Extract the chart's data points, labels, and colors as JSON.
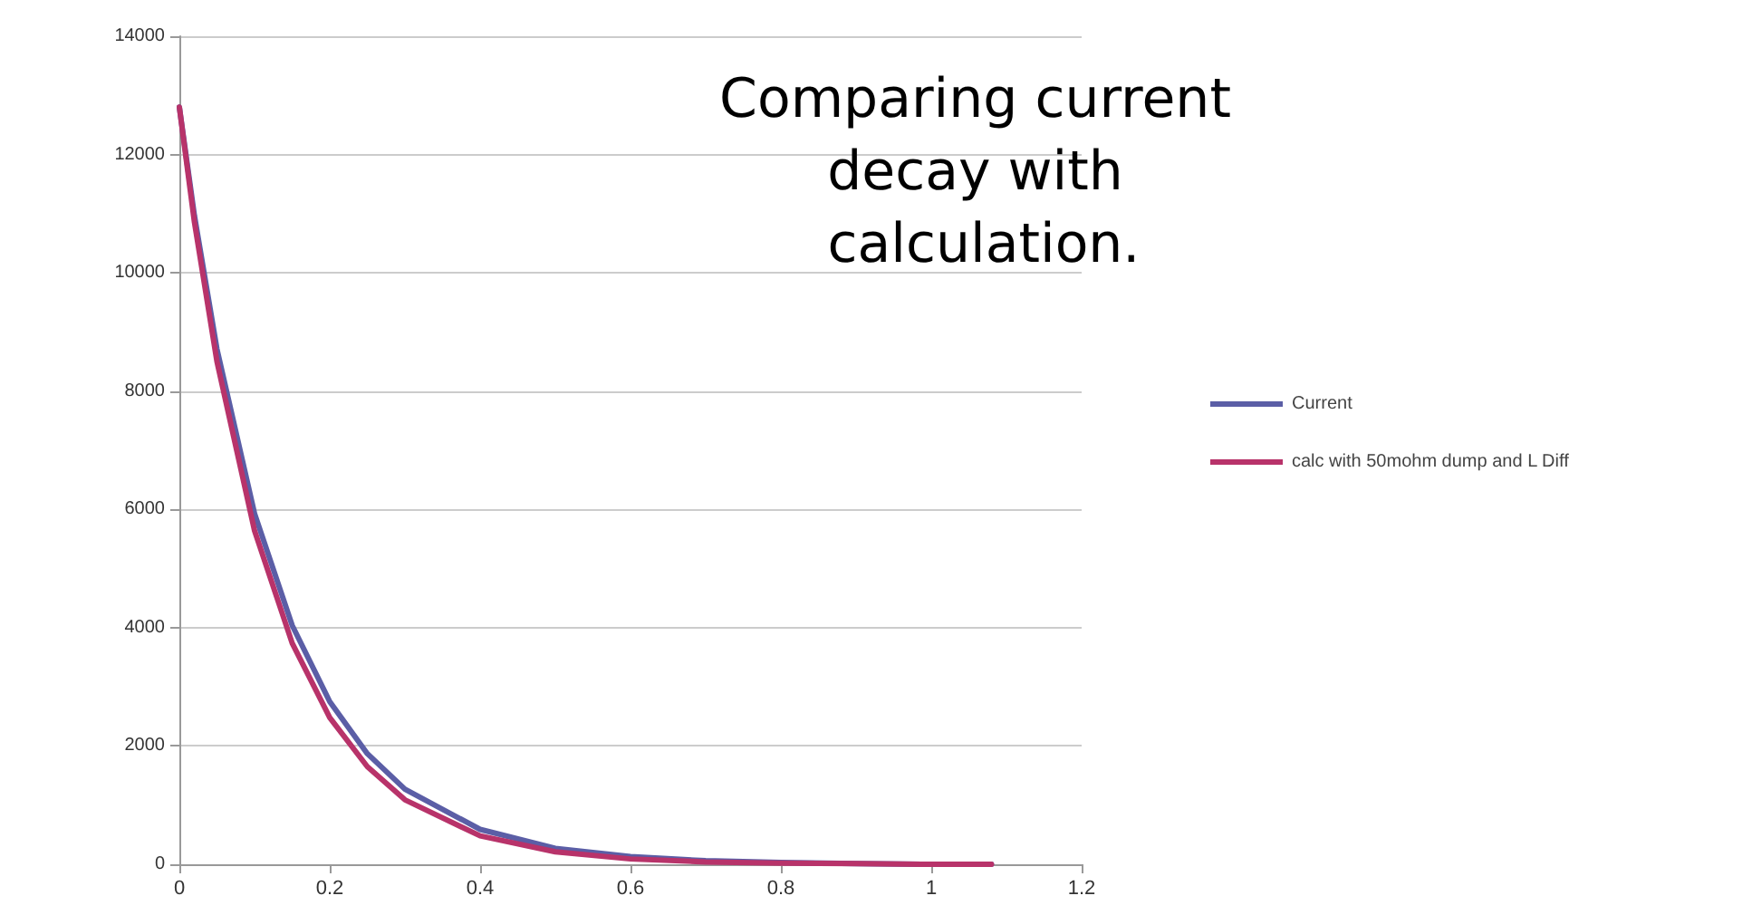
{
  "chart_data": {
    "type": "line",
    "title": "Comparing current decay with calculation.",
    "x": [
      0,
      0.02,
      0.05,
      0.1,
      0.15,
      0.2,
      0.25,
      0.3,
      0.4,
      0.5,
      0.6,
      0.7,
      0.8,
      0.9,
      1.0,
      1.08
    ],
    "series": [
      {
        "name": "Current",
        "color": "#5b5ea6",
        "values": [
          12800,
          10970,
          8710,
          5930,
          4040,
          2750,
          1870,
          1270,
          590,
          270,
          130,
          60,
          30,
          10,
          0,
          0
        ]
      },
      {
        "name": "calc with 50mohm dump and L Diff",
        "color": "#b8336a",
        "values": [
          12800,
          10860,
          8500,
          5640,
          3740,
          2480,
          1650,
          1090,
          480,
          210,
          90,
          40,
          20,
          10,
          0,
          0
        ]
      }
    ],
    "xlim": [
      0,
      1.2
    ],
    "xticks": [
      0,
      0.2,
      0.4,
      0.6,
      0.8,
      1,
      1.2
    ],
    "ylim": [
      0,
      14000
    ],
    "yticks": [
      0,
      2000,
      4000,
      6000,
      8000,
      10000,
      12000,
      14000
    ],
    "grid": "y",
    "legend": "right",
    "marker": "none",
    "line_style": "solid"
  }
}
